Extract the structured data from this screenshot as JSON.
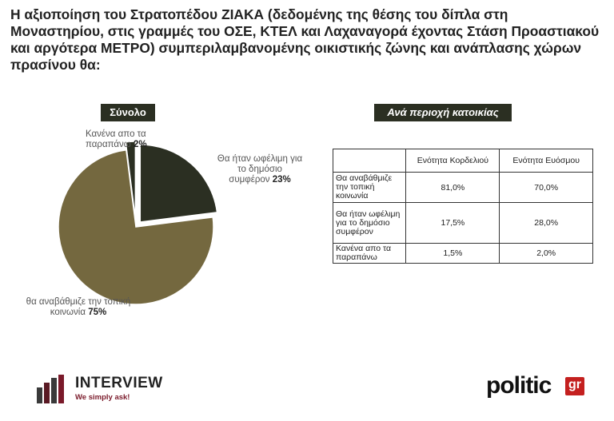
{
  "title": "Η αξιοποίηση του Στρατοπέδου ΖΙΑΚΑ (δεδομένης της θέσης του δίπλα στη Μοναστηρίου, στις γραμμές του ΟΣΕ, ΚΤΕΛ και Λαχαναγορά έχοντας Στάση Προαστιακού και αργότερα ΜΕΤΡΟ) συμπεριλαμβανομένης οικιστικής ζώνης και ανάπλασης χώρων πρασίνου θα:",
  "total_label": "Σύνολο",
  "region_label": "Ανά περιοχή κατοικίας",
  "pie_labels": {
    "public_text": "Θα ήταν ωφέλιμη για το δημόσιο συμφέρον",
    "public_value": "23%",
    "upgrade_text": "θα αναβάθμιζε την τοπική κοινωνία",
    "upgrade_value": "75%",
    "none_text": "Κανένα απο τα παραπάνω",
    "none_value": "2%"
  },
  "chart_data": [
    {
      "type": "pie",
      "title": "Σύνολο",
      "labels": [
        "Θα ήταν ωφέλιμη για το δημόσιο συμφέρον",
        "θα αναβάθμιζε την τοπική κοινωνία",
        "Κανένα απο τα παραπάνω"
      ],
      "values": [
        23,
        75,
        2
      ],
      "colors": [
        "#2b2f22",
        "#74683f",
        "#2b2f22"
      ]
    },
    {
      "type": "table",
      "title": "Ανά περιοχή κατοικίας",
      "columns": [
        "Ενότητα Κορδελιού",
        "Ενότητα Ευόσμου"
      ],
      "rows": [
        {
          "label": "Θα αναβάθμιζε την τοπική κοινωνία",
          "values": [
            "81,0%",
            "70,0%"
          ]
        },
        {
          "label": "Θα ήταν ωφέλιμη για το δημόσιο συμφέρον",
          "values": [
            "17,5%",
            "28,0%"
          ]
        },
        {
          "label": "Κανένα απο τα παραπάνω",
          "values": [
            "1,5%",
            "2,0%"
          ]
        }
      ]
    }
  ],
  "logos": {
    "interview_name": "INTERVIEW",
    "interview_tag": "We simply ask!",
    "politic_word": "politic",
    "politic_suffix": "gr"
  }
}
